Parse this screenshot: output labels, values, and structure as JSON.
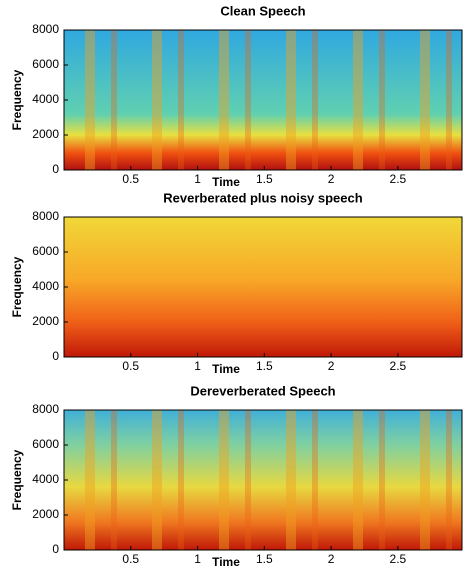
{
  "chart_data": [
    {
      "type": "spectrogram",
      "title": "Clean Speech",
      "xlabel": "Time",
      "ylabel": "Frequency",
      "xlim": [
        0,
        2.98
      ],
      "ylim": [
        0,
        8000
      ],
      "xticks": [
        0.5,
        1,
        1.5,
        2,
        2.5
      ],
      "yticks": [
        0,
        2000,
        4000,
        6000,
        8000
      ]
    },
    {
      "type": "spectrogram",
      "title": "Reverberated plus noisy speech",
      "xlabel": "Time",
      "ylabel": "Frequency",
      "xlim": [
        0,
        2.98
      ],
      "ylim": [
        0,
        8000
      ],
      "xticks": [
        0.5,
        1,
        1.5,
        2,
        2.5
      ],
      "yticks": [
        0,
        2000,
        4000,
        6000,
        8000
      ]
    },
    {
      "type": "spectrogram",
      "title": "Dereverberated Speech",
      "xlabel": "Time",
      "ylabel": "Frequency",
      "xlim": [
        0,
        2.98
      ],
      "ylim": [
        0,
        8000
      ],
      "xticks": [
        0.5,
        1,
        1.5,
        2,
        2.5
      ],
      "yticks": [
        0,
        2000,
        4000,
        6000,
        8000
      ]
    }
  ]
}
